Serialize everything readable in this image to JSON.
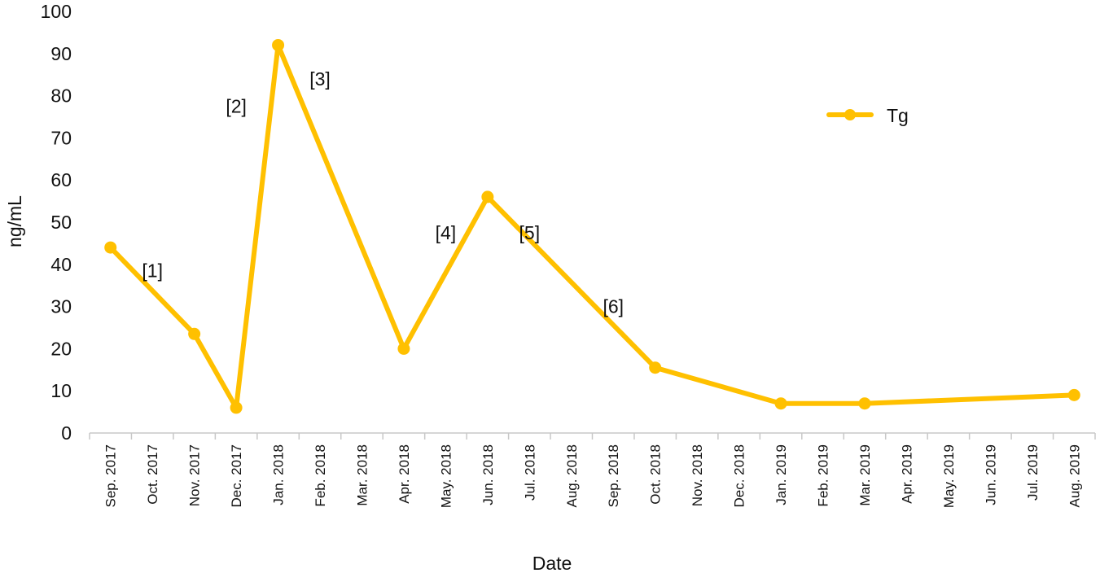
{
  "chart_data": {
    "type": "line",
    "title": "",
    "xlabel": "Date",
    "ylabel": "ng/mL",
    "ylim": [
      0,
      100
    ],
    "yticks": [
      0,
      10,
      20,
      30,
      40,
      50,
      60,
      70,
      80,
      90,
      100
    ],
    "grid": false,
    "legend_position": "top-right",
    "categories": [
      "Sep. 2017",
      "Oct. 2017",
      "Nov. 2017",
      "Dec. 2017",
      "Jan. 2018",
      "Feb. 2018",
      "Mar. 2018",
      "Apr. 2018",
      "May. 2018",
      "Jun. 2018",
      "Jul. 2018",
      "Aug. 2018",
      "Sep. 2018",
      "Oct. 2018",
      "Nov. 2018",
      "Dec. 2018",
      "Jan. 2019",
      "Feb. 2019",
      "Mar. 2019",
      "Apr. 2019",
      "May. 2019",
      "Jun. 2019",
      "Jul. 2019",
      "Aug. 2019"
    ],
    "series": [
      {
        "name": "Tg",
        "color": "#FFC000",
        "points": [
          {
            "x": "Sep. 2017",
            "y": 44
          },
          {
            "x": "Nov. 2017",
            "y": 23.5
          },
          {
            "x": "Dec. 2017",
            "y": 6
          },
          {
            "x": "Jan. 2018",
            "y": 92
          },
          {
            "x": "Apr. 2018",
            "y": 20
          },
          {
            "x": "Jun. 2018",
            "y": 56
          },
          {
            "x": "Oct. 2018",
            "y": 15.5
          },
          {
            "x": "Jan. 2019",
            "y": 7
          },
          {
            "x": "Mar. 2019",
            "y": 7
          },
          {
            "x": "Aug. 2019",
            "y": 9
          }
        ]
      }
    ],
    "annotations": [
      {
        "text": "[1]",
        "x": "Oct. 2017",
        "y": 38.5
      },
      {
        "text": "[2]",
        "x": "Dec. 2017",
        "y": 77.5
      },
      {
        "text": "[3]",
        "x": "Feb. 2018",
        "y": 84
      },
      {
        "text": "[4]",
        "x": "May. 2018",
        "y": 47.5
      },
      {
        "text": "[5]",
        "x": "Jul. 2018",
        "y": 47.5
      },
      {
        "text": "[6]",
        "x": "Sep. 2018",
        "y": 30
      }
    ]
  }
}
